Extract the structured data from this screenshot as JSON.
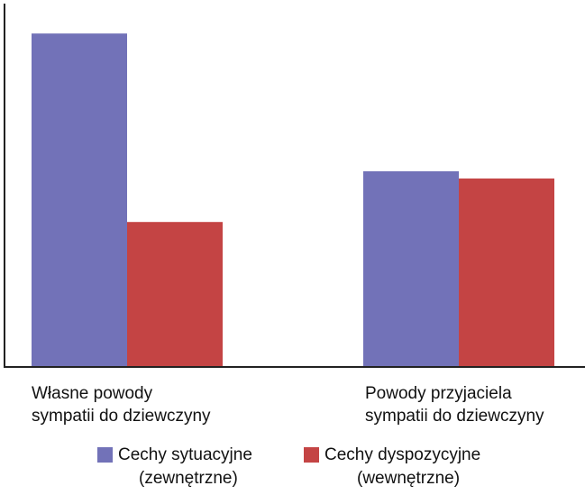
{
  "chart_data": {
    "type": "bar",
    "title": "",
    "xlabel": "",
    "ylabel": "",
    "ylim": [
      0,
      100
    ],
    "grid": false,
    "legend_position": "bottom",
    "categories": [
      [
        "Własne powody",
        "sympatii do dziewczyny"
      ],
      [
        "Powody przyjaciela",
        "sympatii do dziewczyny"
      ]
    ],
    "series": [
      {
        "name": [
          "Cechy sytuacyjne",
          "(zewnętrzne)"
        ],
        "color": "#7272b8",
        "values": [
          92,
          54
        ]
      },
      {
        "name": [
          "Cechy dyspozycyjne",
          "(wewnętrzne)"
        ],
        "color": "#c44444",
        "values": [
          40,
          52
        ]
      }
    ]
  }
}
